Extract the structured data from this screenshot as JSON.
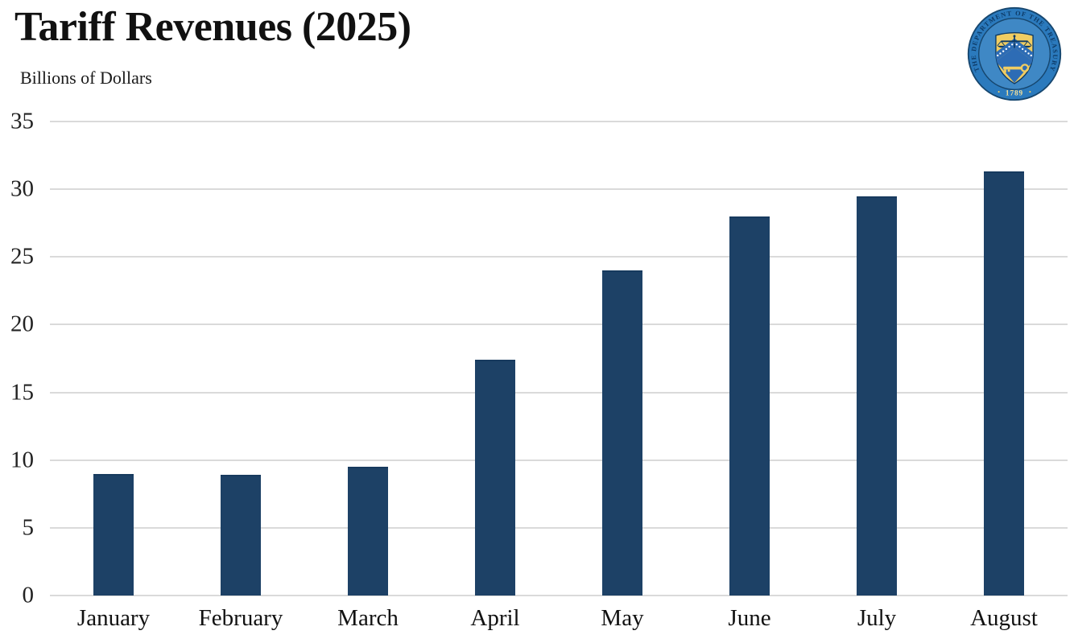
{
  "header": {
    "title": "Tariff Revenues (2025)",
    "subtitle": "Billions of Dollars"
  },
  "seal": {
    "label": "U.S. Department of the Treasury seal",
    "ring_text": "THE DEPARTMENT OF THE TREASURY",
    "year": "1789",
    "colors": {
      "ring": "#2b7abd",
      "disc": "#3f88c5",
      "border": "#16466e",
      "shield": "#f0cd62",
      "chevron": "#2d6cb5",
      "emblem": "#0d3a66",
      "year_text": "#f3df9a"
    }
  },
  "chart_data": {
    "type": "bar",
    "title": "Tariff Revenues (2025)",
    "ylabel": "Billions of Dollars",
    "xlabel": "",
    "categories": [
      "January",
      "February",
      "March",
      "April",
      "May",
      "June",
      "July",
      "August"
    ],
    "values": [
      9.0,
      8.9,
      9.5,
      17.4,
      24.0,
      28.0,
      29.5,
      31.3
    ],
    "ylim": [
      0,
      35
    ],
    "yticks": [
      0,
      5,
      10,
      15,
      20,
      25,
      30,
      35
    ],
    "grid": true,
    "legend_position": "none",
    "bar_color": "#1d4166",
    "bar_edge_color": "#173a5e",
    "gridline_color": "#dadada"
  }
}
